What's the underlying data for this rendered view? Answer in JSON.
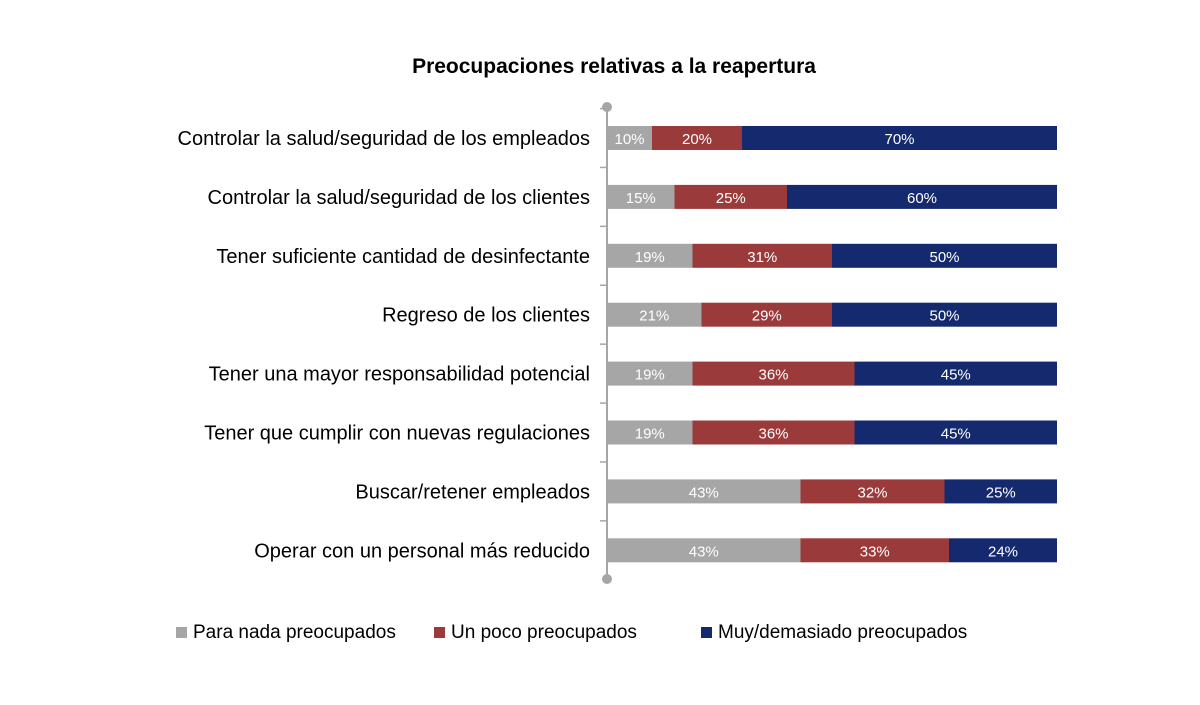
{
  "chart_data": {
    "type": "bar",
    "orientation": "horizontal",
    "stacked": true,
    "title": "Preocupaciones relativas a la reapertura",
    "xlabel": "",
    "ylabel": "",
    "xlim": [
      0,
      100
    ],
    "grid": false,
    "legend_position": "bottom",
    "categories": [
      "Controlar la salud/seguridad de los empleados",
      "Controlar la salud/seguridad de los clientes",
      "Tener suficiente cantidad de desinfectante",
      "Regreso de los clientes",
      "Tener una mayor responsabilidad potencial",
      "Tener que cumplir con nuevas regulaciones",
      "Buscar/retener empleados",
      "Operar con un personal más reducido"
    ],
    "series": [
      {
        "name": "Para nada preocupados",
        "color": "#a6a6a6",
        "values": [
          10,
          15,
          19,
          21,
          19,
          19,
          43,
          43
        ],
        "labels": [
          "10%",
          "15%",
          "19%",
          "21%",
          "19%",
          "19%",
          "43%",
          "43%"
        ]
      },
      {
        "name": "Un poco preocupados",
        "color": "#9b3a3a",
        "values": [
          20,
          25,
          31,
          29,
          36,
          36,
          32,
          33
        ],
        "labels": [
          "20%",
          "25%",
          "31%",
          "29%",
          "36%",
          "36%",
          "32%",
          "33%"
        ]
      },
      {
        "name": "Muy/demasiado preocupados",
        "color": "#15296e",
        "values": [
          70,
          60,
          50,
          50,
          45,
          45,
          25,
          24
        ],
        "labels": [
          "70%",
          "60%",
          "50%",
          "50%",
          "45%",
          "45%",
          "25%",
          "24%"
        ]
      }
    ],
    "axis_color": "#a6a6a6",
    "label_color": "#ffffff",
    "text_color": "#000000"
  }
}
